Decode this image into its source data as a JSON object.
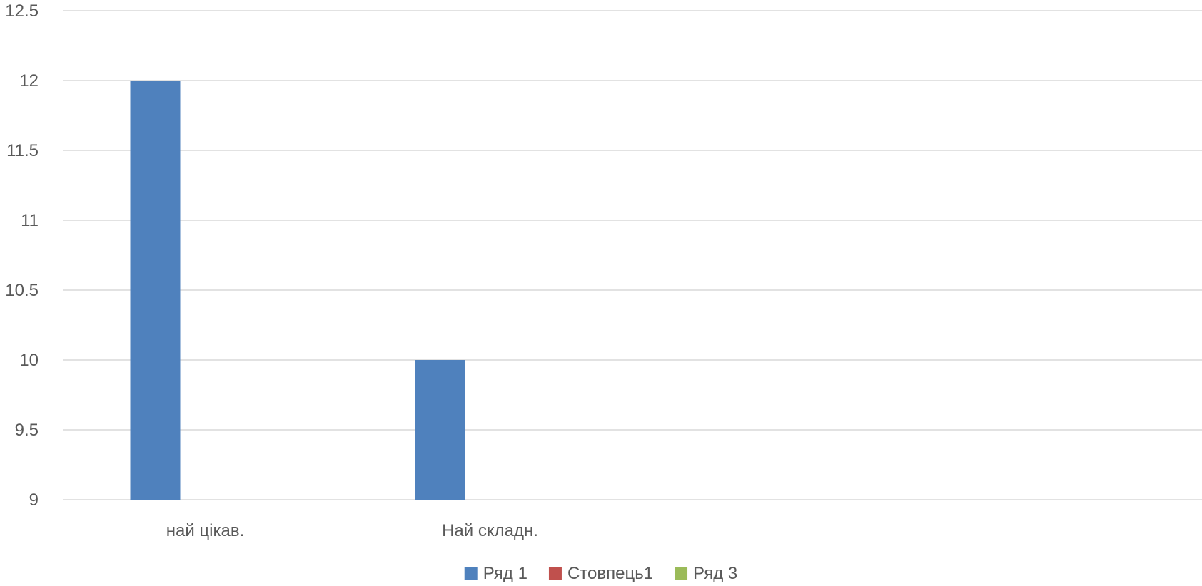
{
  "chart_data": {
    "type": "bar",
    "categories": [
      "най цікав.",
      "Най складн.",
      "",
      ""
    ],
    "series": [
      {
        "name": "Ряд 1",
        "values": [
          12,
          10,
          null,
          null
        ],
        "color": "#4f81bd"
      },
      {
        "name": "Стовпець1",
        "values": [
          null,
          null,
          null,
          null
        ],
        "color": "#c0504d"
      },
      {
        "name": "Ряд 3",
        "values": [
          null,
          null,
          null,
          null
        ],
        "color": "#9bbb59"
      }
    ],
    "ylim": [
      9,
      12.5
    ],
    "yticks": [
      9,
      9.5,
      10,
      10.5,
      11,
      11.5,
      12,
      12.5
    ],
    "ytick_labels": [
      "9",
      "9.5",
      "10",
      "10.5",
      "11",
      "11.5",
      "12",
      "12.5"
    ],
    "grid": true,
    "legend_position": "bottom"
  }
}
